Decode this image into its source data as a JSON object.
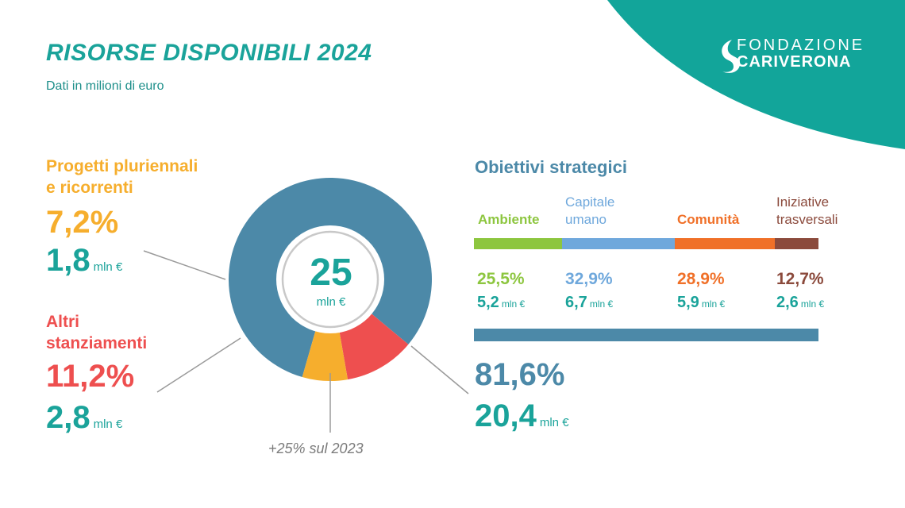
{
  "header": {
    "title": "RISORSE DISPONIBILI 2024",
    "subtitle": "Dati in milioni di euro",
    "logo_line1": "FONDAZIONE",
    "logo_line2": "CARIVERONA"
  },
  "colors": {
    "teal": "#1aa39a",
    "blue": "#4c89a8",
    "orange": "#f6ae2d",
    "red": "#ee4f4f",
    "ambiente": "#8dc63f",
    "capitale": "#6fa8dc",
    "comunita": "#f07028",
    "iniziative": "#8b4a3c"
  },
  "chart_data": [
    {
      "type": "pie",
      "center_value": "25",
      "center_unit": "mln €",
      "note": "+25% sul 2023",
      "slices": [
        {
          "label": "Obiettivi strategici",
          "percent": 81.6,
          "percent_text": "81,6%",
          "value_text": "20,4",
          "unit": "mln €",
          "color": "#4c89a8"
        },
        {
          "label_line1": "Altri",
          "label_line2": "stanziamenti",
          "percent": 11.2,
          "percent_text": "11,2%",
          "value_text": "2,8",
          "unit": "mln €",
          "color": "#ee4f4f"
        },
        {
          "label_line1": "Progetti pluriennali",
          "label_line2": "e ricorrenti",
          "percent": 7.2,
          "percent_text": "7,2%",
          "value_text": "1,8",
          "unit": "mln €",
          "color": "#f6ae2d"
        }
      ]
    },
    {
      "type": "bar",
      "title": "Obiettivi strategici",
      "categories": [
        {
          "line1": "Ambiente",
          "line2": "",
          "percent": 25.5,
          "percent_text": "25,5%",
          "value_text": "5,2",
          "unit": "mln €",
          "color": "#8dc63f"
        },
        {
          "line1": "Capitale",
          "line2": "umano",
          "percent": 32.9,
          "percent_text": "32,9%",
          "value_text": "6,7",
          "unit": "mln €",
          "color": "#6fa8dc"
        },
        {
          "line1": "Comunità",
          "line2": "",
          "percent": 28.9,
          "percent_text": "28,9%",
          "value_text": "5,9",
          "unit": "mln €",
          "color": "#f07028"
        },
        {
          "line1": "Iniziative",
          "line2": "trasversali",
          "percent": 12.7,
          "percent_text": "12,7%",
          "value_text": "2,6",
          "unit": "mln €",
          "color": "#8b4a3c"
        }
      ]
    }
  ]
}
